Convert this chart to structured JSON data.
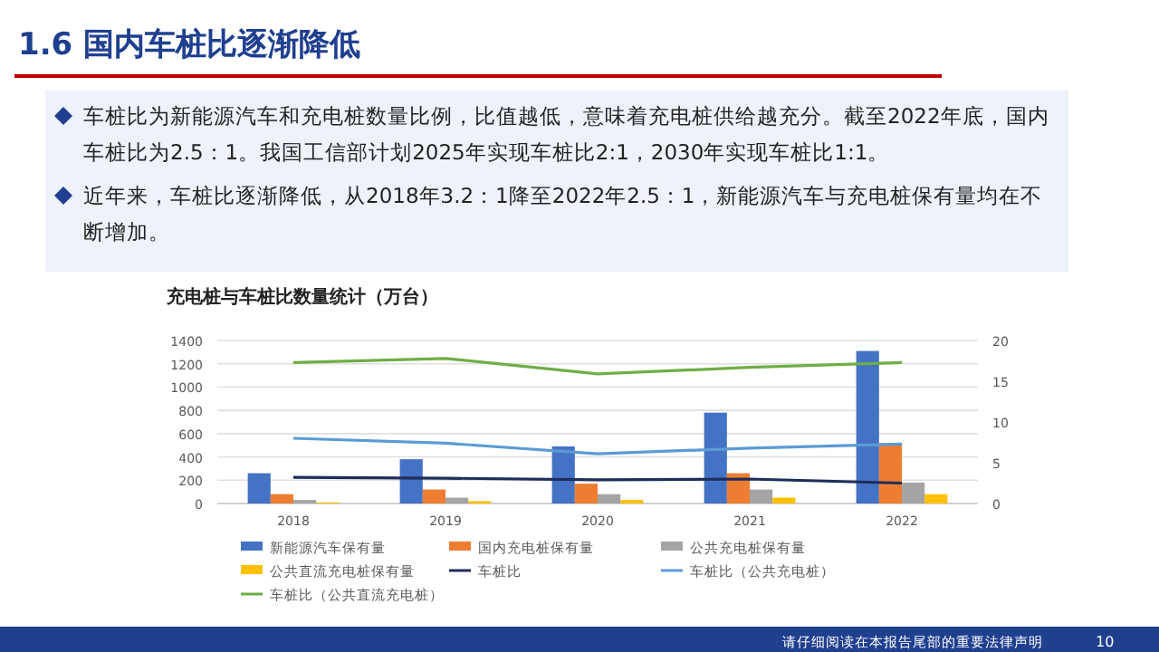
{
  "chart_data": {
    "type": "bar",
    "title": "1.6 国内车桩比逐渐降低",
    "subtitle": "充电桩与车桩比数量统计（万台）",
    "annotations": [
      "车桩比为新能源汽车和充电桩数量比例，比值越低，意味着充电桩供给越充分。截至2022年底，国内车桩比为2.5：1。我国工信部计划2025年实现车桩比2:1，2030年实现车桩比1:1。",
      "近年来，车桩比逐渐降低，从2018年3.2：1降至2022年2.5：1，新能源汽车与充电桩保有量均在不断增加。",
      "请仔细阅读在本报告尾部的重要法律声明",
      "10"
    ],
    "categories": [
      "2018",
      "2019",
      "2020",
      "2021",
      "2022"
    ],
    "series": [
      {
        "name": "新能源汽车保有量",
        "color": "#4472c4",
        "values": [
          260,
          380,
          490,
          780,
          1310
        ]
      },
      {
        "name": "国内充电桩保有量",
        "color": "#ed7d31",
        "values": [
          80,
          120,
          170,
          260,
          520
        ]
      },
      {
        "name": "公共充电桩保有量",
        "color": "#a5a5a5",
        "values": [
          30,
          50,
          80,
          120,
          180
        ]
      },
      {
        "name": "公共直流充电桩保有量",
        "color": "#ffc000",
        "values": [
          10,
          20,
          30,
          50,
          80
        ]
      },
      {
        "name": "车桩比",
        "type": "line",
        "axis": "y2",
        "color": "#1f2d5a",
        "values": [
          3.2,
          3.1,
          2.9,
          3.0,
          2.5
        ]
      },
      {
        "name": "车桩比（公共充电桩）",
        "type": "line",
        "axis": "y2",
        "color": "#5b9bd5",
        "values": [
          8.0,
          7.4,
          6.1,
          6.8,
          7.3
        ]
      },
      {
        "name": "车桩比（公共直流充电桩）",
        "type": "line",
        "axis": "y2",
        "color": "#70ad47",
        "values": [
          17.3,
          17.8,
          15.9,
          16.7,
          17.3
        ]
      }
    ],
    "ylim": [
      0,
      1400
    ],
    "yticks": [
      0,
      200,
      400,
      600,
      800,
      1000,
      1200,
      1400
    ],
    "y2lim": [
      0,
      20
    ],
    "y2ticks": [
      0,
      5,
      10,
      15,
      20
    ],
    "grid": "y",
    "legend": "bottom",
    "marker": "none"
  }
}
